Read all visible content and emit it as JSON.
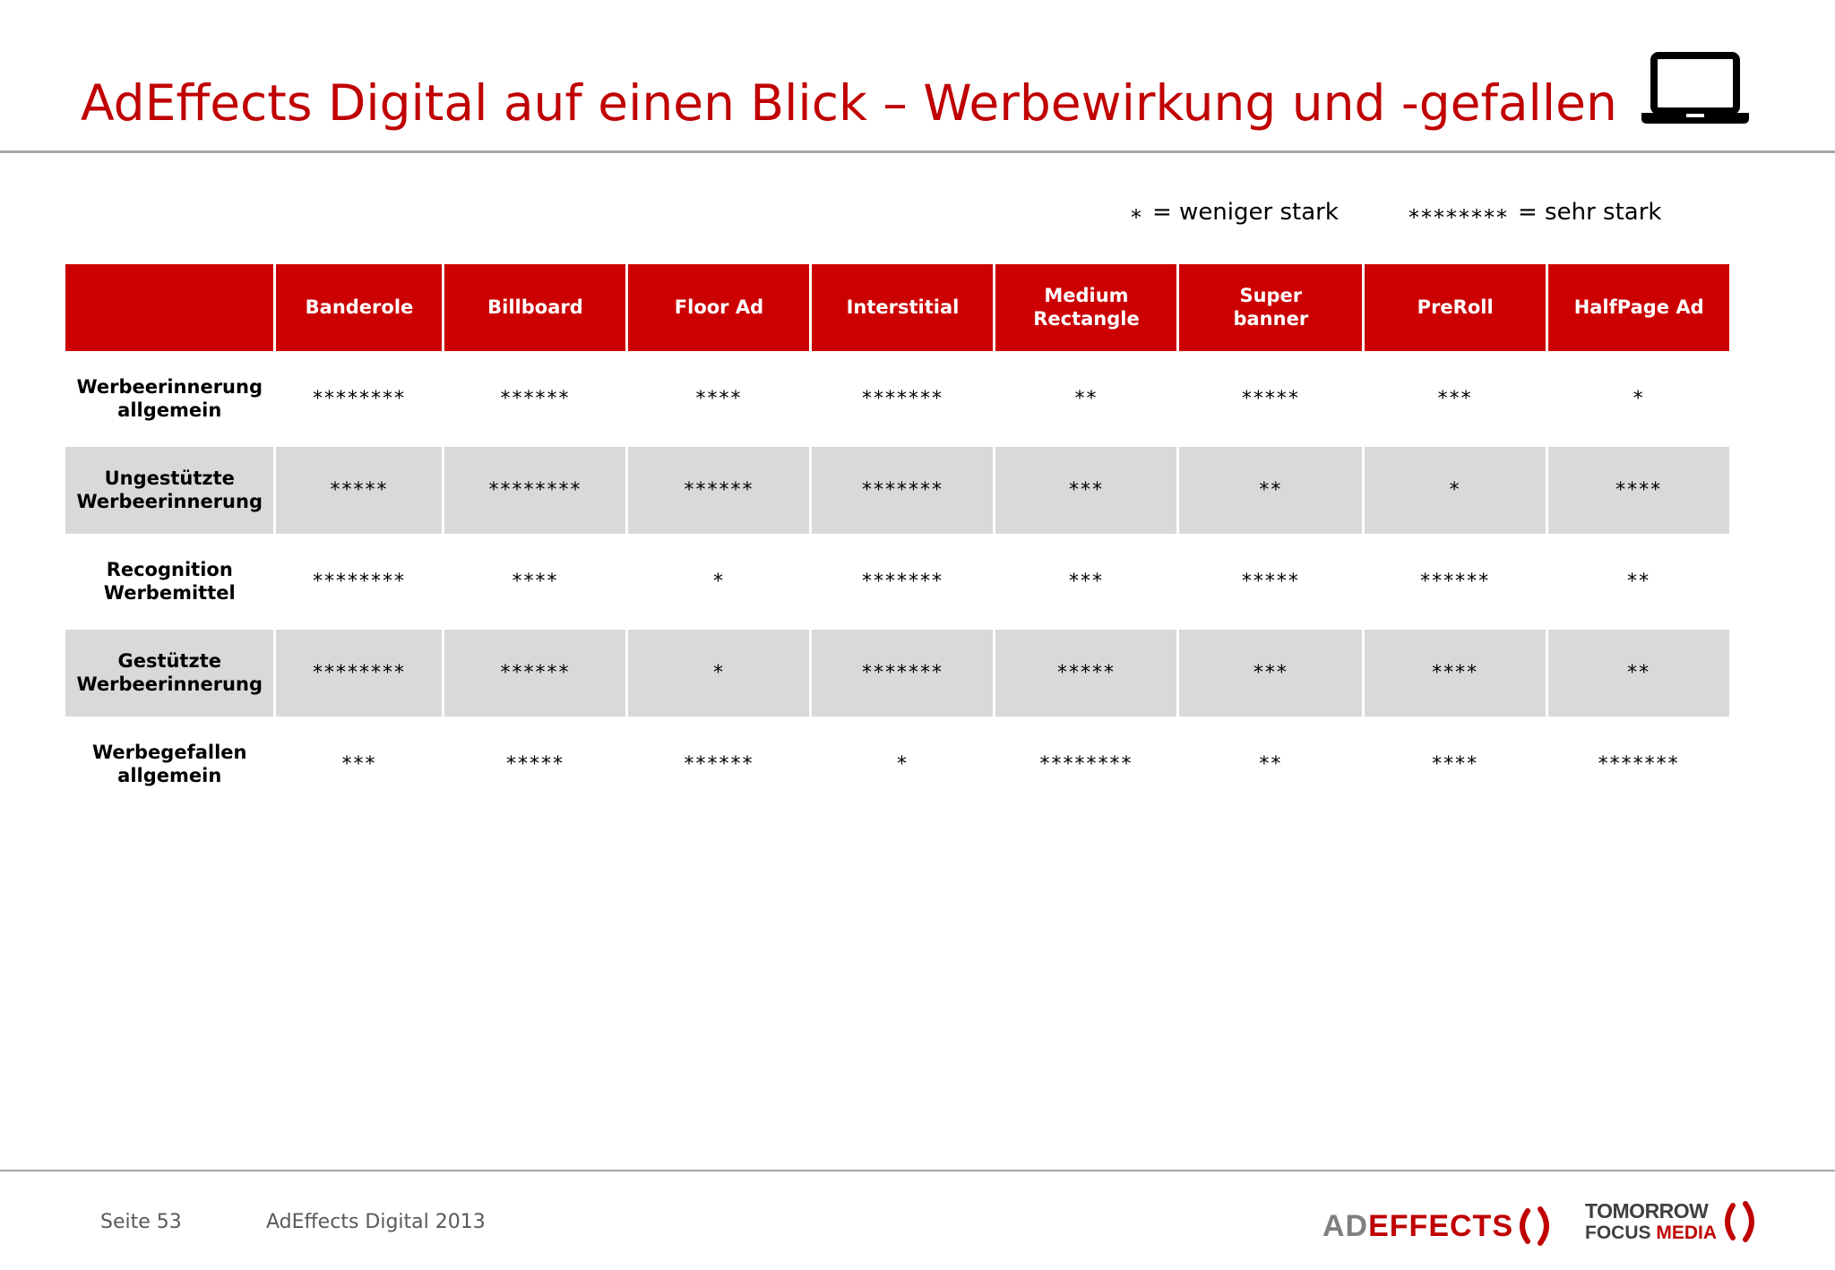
{
  "header": {
    "title": "AdEffects Digital auf einen Blick – Werbewirkung und -gefallen",
    "icon": "laptop-icon"
  },
  "legend": {
    "weak_symbol": "*",
    "weak_label": "= weniger stark",
    "strong_symbol": "********",
    "strong_label": "= sehr stark"
  },
  "table": {
    "corner": "",
    "columns": [
      "Banderole",
      "Billboard",
      "Floor Ad",
      "Interstitial",
      "Medium Rectangle",
      "Super banner",
      "PreRoll",
      "HalfPage Ad"
    ],
    "rows": [
      {
        "label": "Werbeerinnerung allgemein",
        "ratings": [
          "********",
          "******",
          "****",
          "*******",
          "**",
          "*****",
          "***",
          "*"
        ]
      },
      {
        "label": "Ungestützte Werbeerinnerung",
        "ratings": [
          "*****",
          "********",
          "******",
          "*******",
          "***",
          "**",
          "*",
          "****"
        ]
      },
      {
        "label": "Recognition Werbemittel",
        "ratings": [
          "********",
          "****",
          "*",
          "*******",
          "***",
          "*****",
          "******",
          "**"
        ]
      },
      {
        "label": "Gestützte Werbeerinnerung",
        "ratings": [
          "********",
          "******",
          "*",
          "*******",
          "*****",
          "***",
          "****",
          "**"
        ]
      },
      {
        "label": "Werbegefallen allgemein",
        "ratings": [
          "***",
          "*****",
          "******",
          "*",
          "********",
          "**",
          "****",
          "*******"
        ]
      }
    ]
  },
  "footer": {
    "page": "Seite 53",
    "source": "AdEffects Digital 2013"
  },
  "logos": {
    "adeffects_ad": "AD",
    "adeffects_effects": "EFFECTS",
    "tfm_line1": "TOMORROW",
    "tfm_line2": "FOCUS",
    "tfm_line3": "MEDIA"
  },
  "colors": {
    "accent": "#c00000",
    "header_fill": "#cc0000",
    "shaded_row": "#d9d9d9",
    "rule": "#a6a6a6"
  }
}
